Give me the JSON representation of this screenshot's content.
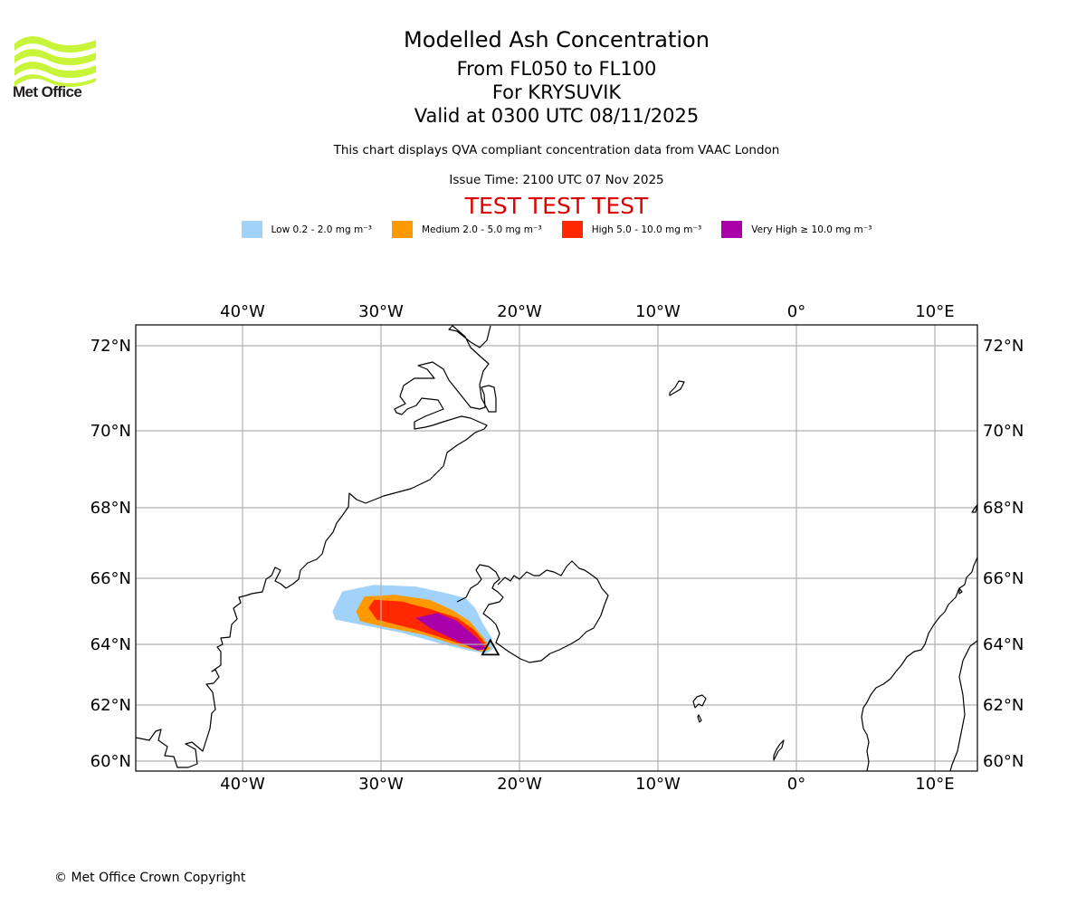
{
  "header": {
    "logo_text": "Met Office",
    "title": "Modelled Ash Concentration",
    "levels": "From FL050 to FL100",
    "volcano": "For KRYSUVIK",
    "valid": "Valid at 0300 UTC 08/11/2025",
    "subtitle": "This chart displays QVA compliant concentration data from VAAC London",
    "issue_time": "Issue Time: 2100 UTC 07 Nov 2025",
    "test_banner": "TEST TEST TEST"
  },
  "legend": [
    {
      "label": "Low 0.2 - 2.0 mg m⁻³",
      "color": "#a0d2fa"
    },
    {
      "label": "Medium 2.0 - 5.0 mg m⁻³",
      "color": "#ff9900"
    },
    {
      "label": "High 5.0 - 10.0 mg m⁻³",
      "color": "#ff2800"
    },
    {
      "label": "Very High ≥ 10.0 mg m⁻³",
      "color": "#aa00aa"
    }
  ],
  "chart_data": {
    "type": "map",
    "title": "Modelled Ash Concentration",
    "projection": "lambert-conformal",
    "lon_ticks": [
      "40°W",
      "30°W",
      "20°W",
      "10°W",
      "0°",
      "10°E"
    ],
    "lat_ticks": [
      "72°N",
      "70°N",
      "68°N",
      "66°N",
      "64°N",
      "62°N",
      "60°N"
    ],
    "extent": {
      "lon": [
        -47.5,
        13.2
      ],
      "lat": [
        59.8,
        72.5
      ]
    },
    "grid": true,
    "volcano": {
      "name": "KRYSUVIK",
      "lon": -22.1,
      "lat": 63.9,
      "marker": "triangle"
    },
    "plume": {
      "low": [
        [
          -33.5,
          65.0
        ],
        [
          -32.8,
          65.6
        ],
        [
          -30.5,
          65.8
        ],
        [
          -27.5,
          65.75
        ],
        [
          -25.3,
          65.55
        ],
        [
          -23.9,
          65.4
        ],
        [
          -23.2,
          65.1
        ],
        [
          -22.6,
          64.6
        ],
        [
          -22.0,
          64.2
        ],
        [
          -21.9,
          63.85
        ],
        [
          -22.4,
          63.7
        ],
        [
          -23.7,
          63.8
        ],
        [
          -25.5,
          64.0
        ],
        [
          -28.5,
          64.35
        ],
        [
          -31.5,
          64.6
        ],
        [
          -33.3,
          64.75
        ]
      ],
      "medium": [
        [
          -31.8,
          65.0
        ],
        [
          -31.2,
          65.45
        ],
        [
          -29.0,
          65.5
        ],
        [
          -26.5,
          65.35
        ],
        [
          -24.9,
          65.05
        ],
        [
          -23.6,
          64.7
        ],
        [
          -22.6,
          64.2
        ],
        [
          -22.1,
          63.85
        ],
        [
          -22.6,
          63.75
        ],
        [
          -24.0,
          63.9
        ],
        [
          -27.0,
          64.3
        ],
        [
          -30.0,
          64.55
        ],
        [
          -31.5,
          64.7
        ]
      ],
      "high": [
        [
          -30.9,
          65.1
        ],
        [
          -30.5,
          65.35
        ],
        [
          -28.5,
          65.3
        ],
        [
          -26.3,
          65.05
        ],
        [
          -24.5,
          64.8
        ],
        [
          -23.3,
          64.45
        ],
        [
          -22.3,
          63.95
        ],
        [
          -22.9,
          63.85
        ],
        [
          -24.5,
          64.05
        ],
        [
          -27.5,
          64.45
        ],
        [
          -30.3,
          64.75
        ]
      ],
      "very_high": [
        [
          -27.5,
          64.8
        ],
        [
          -25.9,
          64.95
        ],
        [
          -24.5,
          64.7
        ],
        [
          -23.1,
          64.2
        ],
        [
          -22.4,
          63.85
        ],
        [
          -23.0,
          63.8
        ],
        [
          -24.5,
          64.1
        ],
        [
          -26.5,
          64.5
        ]
      ]
    }
  },
  "footer": {
    "copyright": "© Met Office Crown Copyright"
  }
}
